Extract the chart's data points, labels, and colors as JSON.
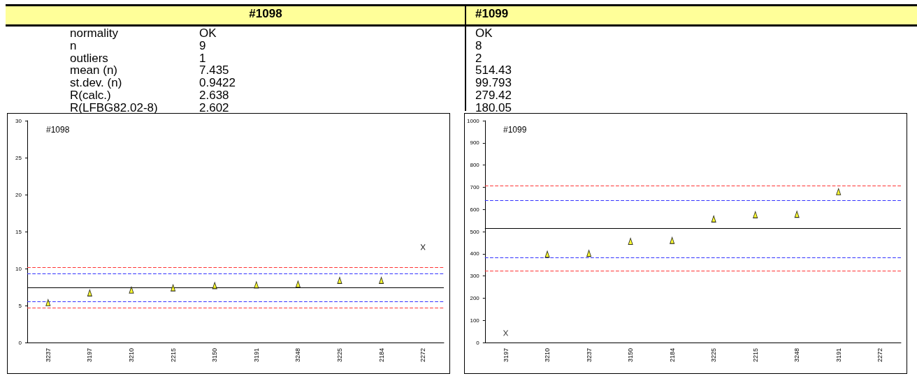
{
  "chart_data": [
    {
      "type": "other",
      "categories": [
        "#1098",
        "#1099"
      ],
      "y_categories": [
        "normality",
        "n",
        "outliers",
        "mean (n)",
        "st.dev. (n)",
        "R(calc.)",
        "R(LFBG82.02-8)"
      ],
      "cell_labels": [
        [
          "OK",
          "OK"
        ],
        [
          "9",
          "8"
        ],
        [
          "1",
          "2"
        ],
        [
          "7.435",
          "514.43"
        ],
        [
          "0.9422",
          "99.793"
        ],
        [
          "2.638",
          "279.42"
        ],
        [
          "2.602",
          "180.05"
        ]
      ]
    },
    {
      "type": "scatter",
      "title": "#1098",
      "categories": [
        "3237",
        "3197",
        "3210",
        "2215",
        "3150",
        "3191",
        "3248",
        "3225",
        "2184",
        "2272"
      ],
      "ylim": [
        0,
        30
      ],
      "yticks": [
        0,
        5,
        10,
        15,
        20,
        25,
        30
      ],
      "grid": false,
      "series": [
        {
          "color": "#ffff00",
          "marker": "triangle",
          "values": [
            5.4,
            6.7,
            7.1,
            7.4,
            7.7,
            7.8,
            7.9,
            8.4,
            8.4,
            null
          ]
        },
        {
          "color": "#000000",
          "marker": "cross",
          "values": [
            null,
            null,
            null,
            null,
            null,
            null,
            null,
            null,
            null,
            12.9
          ]
        }
      ],
      "ref_lines": [
        {
          "axis": "y",
          "value": 7.435,
          "color": "#000000",
          "line_style": "solid"
        },
        {
          "axis": "y",
          "value": 9.3,
          "color": "#3333ff",
          "line_style": "dashed"
        },
        {
          "axis": "y",
          "value": 5.55,
          "color": "#3333ff",
          "line_style": "dashed"
        },
        {
          "axis": "y",
          "value": 10.2,
          "color": "#ff3333",
          "line_style": "dashed"
        },
        {
          "axis": "y",
          "value": 4.7,
          "color": "#ff3333",
          "line_style": "dashed"
        }
      ]
    },
    {
      "type": "scatter",
      "title": "#1099",
      "categories": [
        "3197",
        "3210",
        "3237",
        "3150",
        "2184",
        "3225",
        "2215",
        "3248",
        "3191",
        "2272"
      ],
      "ylim": [
        0,
        1000
      ],
      "yticks": [
        0,
        100,
        200,
        300,
        400,
        500,
        600,
        700,
        800,
        900,
        1000
      ],
      "grid": false,
      "series": [
        {
          "color": "#ffff00",
          "marker": "triangle",
          "values": [
            null,
            398,
            402,
            456,
            460,
            557,
            576,
            578,
            680,
            null
          ]
        },
        {
          "color": "#000000",
          "marker": "cross",
          "values": [
            43,
            null,
            null,
            null,
            null,
            null,
            null,
            null,
            null,
            null
          ]
        }
      ],
      "ref_lines": [
        {
          "axis": "y",
          "value": 514.43,
          "color": "#000000",
          "line_style": "solid"
        },
        {
          "axis": "y",
          "value": 640,
          "color": "#3333ff",
          "line_style": "dashed"
        },
        {
          "axis": "y",
          "value": 384,
          "color": "#3333ff",
          "line_style": "dashed"
        },
        {
          "axis": "y",
          "value": 706,
          "color": "#ff3333",
          "line_style": "dashed"
        },
        {
          "axis": "y",
          "value": 322,
          "color": "#ff3333",
          "line_style": "dashed"
        }
      ]
    }
  ]
}
